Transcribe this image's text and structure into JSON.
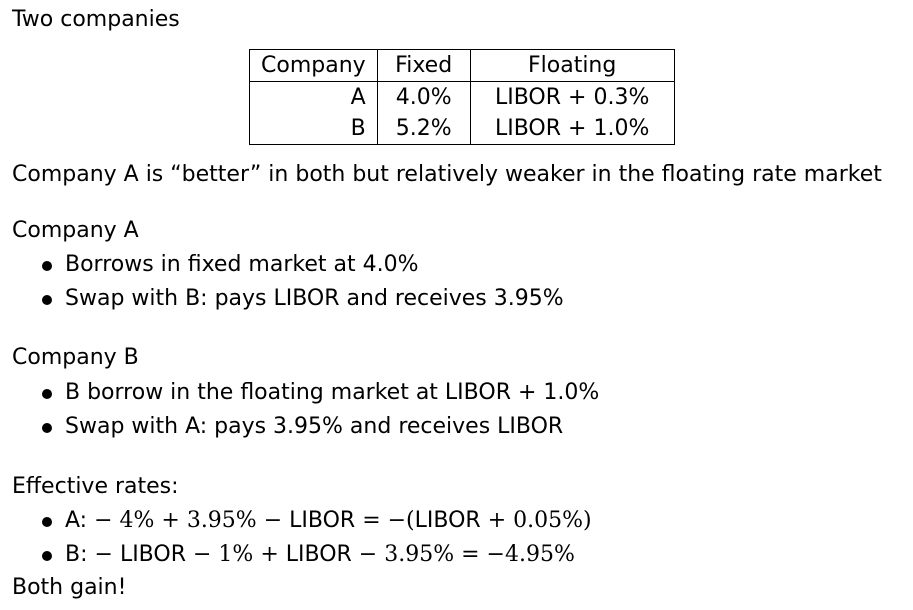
{
  "title": "Two companies",
  "table": {
    "headers": [
      "Company",
      "Fixed",
      "Floating"
    ],
    "rows": [
      [
        "A",
        "4.0%",
        "LIBOR + 0.3%"
      ],
      [
        "B",
        "5.2%",
        "LIBOR + 1.0%"
      ]
    ]
  },
  "observation": "Company A is “better” in both but relatively weaker in the floating rate market",
  "company_a": {
    "heading": "Company A",
    "items": [
      "Borrows in fixed market at 4.0%",
      "Swap with B: pays LIBOR and receives 3.95%"
    ]
  },
  "company_b": {
    "heading": "Company B",
    "items": [
      "B borrow in the floating market at LIBOR + 1.0%",
      "Swap with A: pays 3.95% and receives LIBOR"
    ]
  },
  "effective": {
    "heading": "Effective rates:",
    "a": {
      "label": "A:",
      "t1": " − 4% + 3.95% − ",
      "libor1": "LIBOR",
      "t2": " = −(",
      "libor2": "LIBOR",
      "t3": " + 0.05%)"
    },
    "b": {
      "label": "B:",
      "t0": " − ",
      "libor1": "LIBOR",
      "t1": " − 1% + ",
      "libor2": "LIBOR",
      "t2": " − 3.95% = −4.95%"
    }
  },
  "conclusion": "Both gain!"
}
